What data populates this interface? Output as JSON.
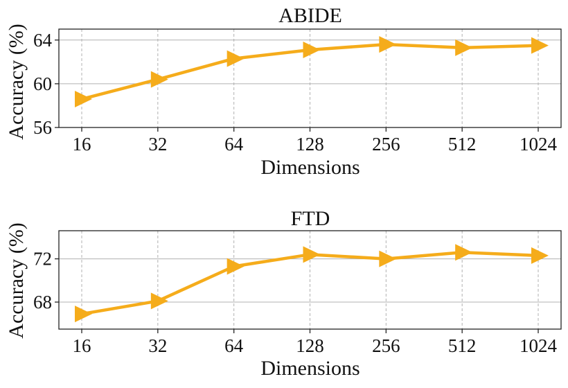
{
  "chart_data": [
    {
      "type": "line",
      "title": "ABIDE",
      "xlabel": "Dimensions",
      "ylabel": "Accuracy (%)",
      "categories": [
        "16",
        "32",
        "64",
        "128",
        "256",
        "512",
        "1024"
      ],
      "series": [
        {
          "values": [
            58.6,
            60.4,
            62.3,
            63.1,
            63.6,
            63.3,
            63.5
          ]
        }
      ],
      "ylim": [
        56,
        65
      ],
      "yticks": [
        56,
        60,
        64
      ],
      "grid": true,
      "marker": "triangle-right",
      "color": "#F5AC1B"
    },
    {
      "type": "line",
      "title": "FTD",
      "xlabel": "Dimensions",
      "ylabel": "Accuracy (%)",
      "categories": [
        "16",
        "32",
        "64",
        "128",
        "256",
        "512",
        "1024"
      ],
      "series": [
        {
          "values": [
            66.9,
            68.1,
            71.3,
            72.4,
            72.0,
            72.6,
            72.3
          ]
        }
      ],
      "ylim": [
        65.5,
        74.6
      ],
      "yticks": [
        68,
        72
      ],
      "grid": true,
      "marker": "triangle-right",
      "color": "#F5AC1B"
    }
  ]
}
